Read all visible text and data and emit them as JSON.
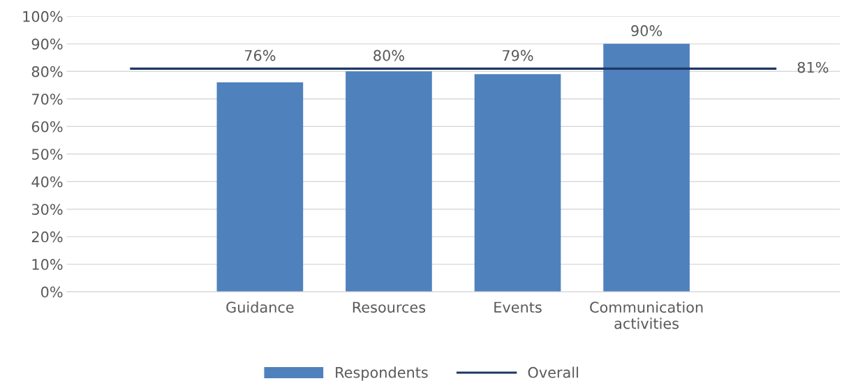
{
  "chart_data": {
    "type": "bar",
    "categories": [
      null,
      "Guidance",
      "Resources",
      "Events",
      "Communication\nactivities",
      null
    ],
    "series": [
      {
        "name": "Respondents",
        "color": "#4f81bd",
        "values": [
          null,
          76,
          80,
          79,
          90,
          null
        ],
        "value_labels": [
          null,
          "76%",
          "80%",
          "79%",
          "90%",
          null
        ]
      },
      {
        "name": "Overall",
        "type": "line",
        "color": "#1f3864",
        "values": [
          81,
          81,
          81,
          81,
          81,
          81
        ],
        "value_labels": [
          null,
          null,
          null,
          null,
          null,
          "81%"
        ]
      }
    ],
    "ylim": [
      0,
      100
    ],
    "yticks": [
      {
        "value": 0,
        "label": "0%"
      },
      {
        "value": 10,
        "label": "10%"
      },
      {
        "value": 20,
        "label": "20%"
      },
      {
        "value": 30,
        "label": "30%"
      },
      {
        "value": 40,
        "label": "40%"
      },
      {
        "value": 50,
        "label": "50%"
      },
      {
        "value": 60,
        "label": "60%"
      },
      {
        "value": 70,
        "label": "70%"
      },
      {
        "value": 80,
        "label": "80%"
      },
      {
        "value": 90,
        "label": "90%"
      },
      {
        "value": 100,
        "label": "100%"
      }
    ],
    "grid": "y",
    "legend": "bottom",
    "marker": "none",
    "line_style": "solid"
  }
}
